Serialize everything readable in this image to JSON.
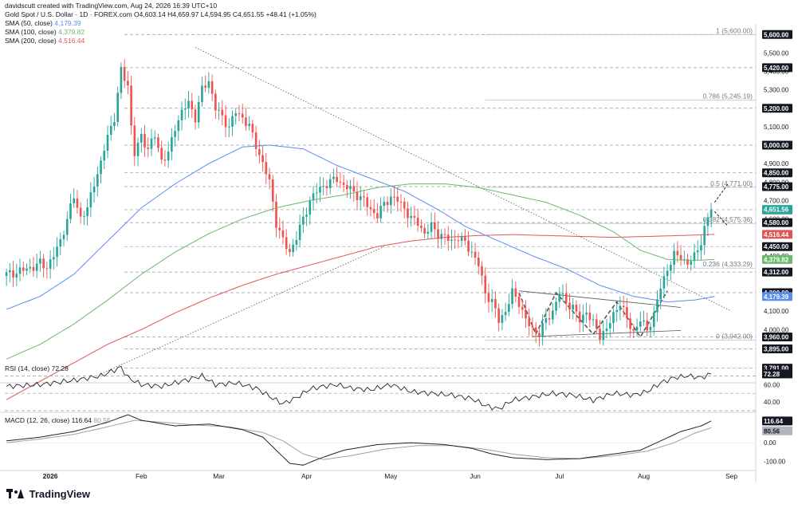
{
  "header": {
    "author_line": "davidscutt created with TradingView.com, Aug 24, 2026 16:39 UTC+10",
    "symbol_line": "Gold Spot / U.S. Dollar · 1D · FOREX.com",
    "ohlc": {
      "o": "O4,603.14",
      "h": "H4,659.97",
      "l": "L4,594.95",
      "c": "C4,651.55",
      "chg": "+48.41 (+1.05%)"
    },
    "sma50": {
      "label": "SMA (50, close)",
      "value": "4,179.39",
      "color": "#5b8def"
    },
    "sma100": {
      "label": "SMA (100, close)",
      "value": "4,379.82",
      "color": "#6cb86c"
    },
    "sma200": {
      "label": "SMA (200, close)",
      "value": "4,516.44",
      "color": "#e05555"
    }
  },
  "brand": "TradingView",
  "chart_data": [
    {
      "type": "candlestick",
      "id": "price",
      "ylim": [
        3720,
        5640
      ],
      "y_ticks": [
        "5,500.00",
        "5,400.00",
        "5,300.00",
        "5,100.00",
        "5,000.00",
        "4,900.00",
        "4,800.00",
        "4,700.00",
        "4,600.00",
        "4,450.00",
        "4,400.00",
        "4,100.00",
        "4,000.00"
      ],
      "y_tick_values": [
        5500,
        5400,
        5300,
        5100,
        5000,
        4900,
        4800,
        4700,
        4600,
        4450,
        4400,
        4100,
        4000
      ],
      "x_labels": [
        "2026",
        "Feb",
        "Mar",
        "Apr",
        "May",
        "Jun",
        "Jul",
        "Aug",
        "Sep"
      ],
      "x_label_index": [
        13,
        40,
        63,
        89,
        114,
        139,
        164,
        189,
        215
      ],
      "anchors": [
        [
          0,
          4300
        ],
        [
          3,
          4310
        ],
        [
          6,
          4330
        ],
        [
          8,
          4340
        ],
        [
          10,
          4360
        ],
        [
          12,
          4340
        ],
        [
          14,
          4400
        ],
        [
          16,
          4480
        ],
        [
          18,
          4600
        ],
        [
          20,
          4720
        ],
        [
          22,
          4610
        ],
        [
          24,
          4650
        ],
        [
          26,
          4800
        ],
        [
          28,
          4900
        ],
        [
          30,
          5050
        ],
        [
          32,
          5150
        ],
        [
          34,
          5400
        ],
        [
          36,
          5330
        ],
        [
          37,
          5100
        ],
        [
          38,
          4950
        ],
        [
          40,
          5050
        ],
        [
          42,
          4980
        ],
        [
          44,
          5050
        ],
        [
          46,
          4920
        ],
        [
          48,
          4950
        ],
        [
          50,
          5100
        ],
        [
          52,
          5180
        ],
        [
          54,
          5230
        ],
        [
          56,
          5150
        ],
        [
          58,
          5300
        ],
        [
          60,
          5350
        ],
        [
          62,
          5200
        ],
        [
          64,
          5150
        ],
        [
          66,
          5100
        ],
        [
          68,
          5180
        ],
        [
          70,
          5150
        ],
        [
          72,
          5100
        ],
        [
          74,
          5000
        ],
        [
          76,
          4900
        ],
        [
          78,
          4800
        ],
        [
          80,
          4580
        ],
        [
          82,
          4480
        ],
        [
          84,
          4420
        ],
        [
          86,
          4500
        ],
        [
          88,
          4600
        ],
        [
          90,
          4700
        ],
        [
          92,
          4750
        ],
        [
          94,
          4780
        ],
        [
          96,
          4800
        ],
        [
          98,
          4820
        ],
        [
          100,
          4780
        ],
        [
          102,
          4760
        ],
        [
          104,
          4730
        ],
        [
          106,
          4700
        ],
        [
          108,
          4650
        ],
        [
          110,
          4620
        ],
        [
          112,
          4680
        ],
        [
          114,
          4720
        ],
        [
          116,
          4700
        ],
        [
          118,
          4660
        ],
        [
          120,
          4600
        ],
        [
          122,
          4580
        ],
        [
          124,
          4520
        ],
        [
          126,
          4560
        ],
        [
          128,
          4520
        ],
        [
          130,
          4500
        ],
        [
          132,
          4480
        ],
        [
          134,
          4500
        ],
        [
          136,
          4470
        ],
        [
          138,
          4420
        ],
        [
          140,
          4350
        ],
        [
          142,
          4200
        ],
        [
          144,
          4150
        ],
        [
          146,
          4050
        ],
        [
          148,
          4100
        ],
        [
          150,
          4200
        ],
        [
          152,
          4150
        ],
        [
          154,
          4050
        ],
        [
          156,
          4000
        ],
        [
          158,
          3980
        ],
        [
          160,
          4050
        ],
        [
          162,
          4100
        ],
        [
          164,
          4200
        ],
        [
          166,
          4150
        ],
        [
          168,
          4120
        ],
        [
          170,
          4050
        ],
        [
          172,
          4100
        ],
        [
          174,
          4030
        ],
        [
          176,
          3970
        ],
        [
          178,
          4000
        ],
        [
          180,
          4080
        ],
        [
          182,
          4150
        ],
        [
          184,
          4050
        ],
        [
          186,
          3990
        ],
        [
          188,
          4050
        ],
        [
          190,
          4000
        ],
        [
          192,
          4080
        ],
        [
          194,
          4230
        ],
        [
          196,
          4330
        ],
        [
          198,
          4400
        ],
        [
          200,
          4400
        ],
        [
          202,
          4350
        ],
        [
          204,
          4400
        ],
        [
          206,
          4480
        ],
        [
          208,
          4600
        ],
        [
          209,
          4651.55
        ]
      ],
      "sma50": [
        [
          0,
          4110
        ],
        [
          10,
          4180
        ],
        [
          20,
          4300
        ],
        [
          30,
          4480
        ],
        [
          40,
          4660
        ],
        [
          50,
          4790
        ],
        [
          60,
          4900
        ],
        [
          70,
          4990
        ],
        [
          78,
          5000
        ],
        [
          88,
          4980
        ],
        [
          98,
          4890
        ],
        [
          108,
          4820
        ],
        [
          118,
          4750
        ],
        [
          128,
          4650
        ],
        [
          136,
          4560
        ],
        [
          146,
          4480
        ],
        [
          156,
          4400
        ],
        [
          166,
          4330
        ],
        [
          176,
          4240
        ],
        [
          186,
          4180
        ],
        [
          196,
          4150
        ],
        [
          204,
          4160
        ],
        [
          210,
          4179.39
        ]
      ],
      "sma100": [
        [
          0,
          3840
        ],
        [
          10,
          3920
        ],
        [
          20,
          4030
        ],
        [
          30,
          4160
        ],
        [
          40,
          4300
        ],
        [
          50,
          4420
        ],
        [
          60,
          4520
        ],
        [
          70,
          4600
        ],
        [
          80,
          4660
        ],
        [
          90,
          4700
        ],
        [
          100,
          4730
        ],
        [
          110,
          4770
        ],
        [
          120,
          4790
        ],
        [
          130,
          4790
        ],
        [
          140,
          4770
        ],
        [
          150,
          4730
        ],
        [
          160,
          4690
        ],
        [
          170,
          4620
        ],
        [
          180,
          4530
        ],
        [
          188,
          4430
        ],
        [
          196,
          4380
        ],
        [
          204,
          4375
        ],
        [
          210,
          4379.82
        ]
      ],
      "sma200": [
        [
          0,
          3620
        ],
        [
          10,
          3720
        ],
        [
          20,
          3820
        ],
        [
          30,
          3920
        ],
        [
          40,
          4000
        ],
        [
          50,
          4090
        ],
        [
          60,
          4170
        ],
        [
          70,
          4240
        ],
        [
          80,
          4300
        ],
        [
          90,
          4350
        ],
        [
          100,
          4400
        ],
        [
          110,
          4450
        ],
        [
          120,
          4480
        ],
        [
          130,
          4500
        ],
        [
          140,
          4510
        ],
        [
          150,
          4515
        ],
        [
          160,
          4510
        ],
        [
          170,
          4505
        ],
        [
          180,
          4500
        ],
        [
          190,
          4505
        ],
        [
          200,
          4510
        ],
        [
          210,
          4516.44
        ]
      ],
      "fib_levels": [
        {
          "label": "1 (5,600.00)",
          "value": 5600
        },
        {
          "label": "0.786 (5,245.19)",
          "value": 5245.19
        },
        {
          "label": "0.5 (4,771.00)",
          "value": 4771
        },
        {
          "label": "0.382 (4,575.36)",
          "value": 4575.36
        },
        {
          "label": "0.236 (4,333.29)",
          "value": 4333.29
        },
        {
          "label": "0 (3,942.00)",
          "value": 3942
        }
      ],
      "level_badges": [
        {
          "label": "5,600.00",
          "value": 5600
        },
        {
          "label": "5,420.00",
          "value": 5420
        },
        {
          "label": "5,200.00",
          "value": 5200
        },
        {
          "label": "5,000.00",
          "value": 5000
        },
        {
          "label": "4,850.00",
          "value": 4850
        },
        {
          "label": "4,775.00",
          "value": 4775
        },
        {
          "label": "4,650.00",
          "value": 4650
        },
        {
          "label": "4,580.00",
          "value": 4580
        },
        {
          "label": "4,450.00",
          "value": 4450
        },
        {
          "label": "4,312.00",
          "value": 4312
        },
        {
          "label": "4,200.00",
          "value": 4200
        },
        {
          "label": "3,960.00",
          "value": 3960
        },
        {
          "label": "3,895.00",
          "value": 3895
        },
        {
          "label": "3,791.00",
          "value": 3791
        }
      ],
      "value_badges": [
        {
          "label": "4,651.56",
          "value": 4651.56,
          "color": "#26a69a"
        },
        {
          "label": "4,516.44",
          "value": 4516.44,
          "color": "#e05555"
        },
        {
          "label": "4,379.82",
          "value": 4379.82,
          "color": "#6cb86c"
        },
        {
          "label": "4,179.39",
          "value": 4179.39,
          "color": "#5b8def"
        }
      ]
    },
    {
      "type": "line",
      "id": "rsi",
      "title": "RSI (14, close)",
      "value": "72.28",
      "ylim": [
        30,
        85
      ],
      "y_ticks": [
        "60.00",
        "40.00"
      ],
      "y_tick_values": [
        60,
        40
      ],
      "levels": [
        70,
        50,
        30
      ],
      "current": 72.28,
      "anchors": [
        [
          0,
          58
        ],
        [
          10,
          60
        ],
        [
          20,
          65
        ],
        [
          28,
          70
        ],
        [
          34,
          80
        ],
        [
          36,
          68
        ],
        [
          40,
          60
        ],
        [
          46,
          58
        ],
        [
          52,
          64
        ],
        [
          58,
          70
        ],
        [
          62,
          60
        ],
        [
          68,
          62
        ],
        [
          74,
          56
        ],
        [
          80,
          42
        ],
        [
          82,
          38
        ],
        [
          86,
          45
        ],
        [
          90,
          55
        ],
        [
          94,
          58
        ],
        [
          98,
          60
        ],
        [
          102,
          56
        ],
        [
          108,
          54
        ],
        [
          114,
          60
        ],
        [
          120,
          52
        ],
        [
          126,
          50
        ],
        [
          132,
          48
        ],
        [
          138,
          44
        ],
        [
          142,
          36
        ],
        [
          146,
          32
        ],
        [
          150,
          42
        ],
        [
          156,
          46
        ],
        [
          162,
          50
        ],
        [
          168,
          48
        ],
        [
          174,
          42
        ],
        [
          180,
          50
        ],
        [
          186,
          48
        ],
        [
          190,
          52
        ],
        [
          194,
          62
        ],
        [
          198,
          68
        ],
        [
          202,
          70
        ],
        [
          206,
          68
        ],
        [
          209,
          72.28
        ]
      ]
    },
    {
      "type": "line",
      "id": "macd",
      "title": "MACD (12, 26, close)",
      "value": "116.64",
      "signal_value": "80.56",
      "ylim": [
        -140,
        150
      ],
      "y_ticks": [
        "0.00",
        "-100.00"
      ],
      "y_tick_values": [
        0,
        -100
      ],
      "macd_current": 116.64,
      "signal_current": 80.56,
      "macd": [
        [
          0,
          10
        ],
        [
          10,
          30
        ],
        [
          20,
          60
        ],
        [
          30,
          110
        ],
        [
          36,
          150
        ],
        [
          40,
          120
        ],
        [
          50,
          90
        ],
        [
          60,
          100
        ],
        [
          70,
          70
        ],
        [
          76,
          30
        ],
        [
          80,
          -40
        ],
        [
          84,
          -110
        ],
        [
          88,
          -120
        ],
        [
          92,
          -90
        ],
        [
          100,
          -40
        ],
        [
          110,
          -10
        ],
        [
          120,
          0
        ],
        [
          130,
          -10
        ],
        [
          138,
          -30
        ],
        [
          144,
          -60
        ],
        [
          150,
          -80
        ],
        [
          160,
          -90
        ],
        [
          170,
          -85
        ],
        [
          180,
          -60
        ],
        [
          188,
          -40
        ],
        [
          194,
          10
        ],
        [
          200,
          60
        ],
        [
          206,
          90
        ],
        [
          209,
          116.64
        ]
      ],
      "signal": [
        [
          0,
          0
        ],
        [
          10,
          20
        ],
        [
          20,
          45
        ],
        [
          30,
          85
        ],
        [
          38,
          120
        ],
        [
          46,
          110
        ],
        [
          56,
          95
        ],
        [
          66,
          85
        ],
        [
          76,
          55
        ],
        [
          82,
          10
        ],
        [
          88,
          -60
        ],
        [
          94,
          -90
        ],
        [
          102,
          -70
        ],
        [
          112,
          -35
        ],
        [
          122,
          -15
        ],
        [
          132,
          -15
        ],
        [
          142,
          -35
        ],
        [
          150,
          -60
        ],
        [
          160,
          -80
        ],
        [
          170,
          -85
        ],
        [
          180,
          -70
        ],
        [
          190,
          -45
        ],
        [
          198,
          0
        ],
        [
          204,
          50
        ],
        [
          209,
          80.56
        ]
      ]
    }
  ]
}
